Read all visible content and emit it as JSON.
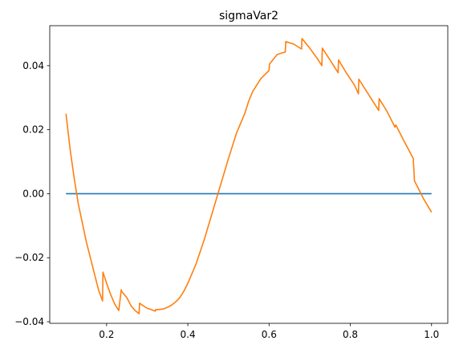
{
  "chart_data": {
    "type": "line",
    "title": "sigmaVar2",
    "xlabel": "",
    "ylabel": "",
    "xlim": [
      0.06,
      1.04
    ],
    "ylim": [
      -0.0405,
      0.0525
    ],
    "grid": false,
    "x_ticks": [
      0.2,
      0.4,
      0.6,
      0.8,
      1.0
    ],
    "x_tick_labels": [
      "0.2",
      "0.4",
      "0.6",
      "0.8",
      "1.0"
    ],
    "y_ticks": [
      -0.04,
      -0.02,
      0.0,
      0.02,
      0.04
    ],
    "y_tick_labels": [
      "−0.04",
      "−0.02",
      "0.00",
      "0.02",
      "0.04"
    ],
    "series": [
      {
        "color": "#1f77b4",
        "x": [
          0.1,
          1.0
        ],
        "y": [
          0.0,
          0.0
        ]
      },
      {
        "color": "#ff7f0e",
        "x": [
          0.1,
          0.11,
          0.12,
          0.13,
          0.14,
          0.15,
          0.16,
          0.17,
          0.18,
          0.19,
          0.191,
          0.2,
          0.21,
          0.22,
          0.23,
          0.236,
          0.237,
          0.25,
          0.26,
          0.27,
          0.28,
          0.281,
          0.29,
          0.3,
          0.31,
          0.32,
          0.321,
          0.33,
          0.34,
          0.35,
          0.36,
          0.37,
          0.38,
          0.39,
          0.4,
          0.42,
          0.44,
          0.46,
          0.48,
          0.5,
          0.52,
          0.54,
          0.55,
          0.56,
          0.58,
          0.6,
          0.601,
          0.62,
          0.64,
          0.641,
          0.66,
          0.68,
          0.681,
          0.7,
          0.72,
          0.73,
          0.731,
          0.75,
          0.77,
          0.771,
          0.79,
          0.81,
          0.82,
          0.821,
          0.84,
          0.86,
          0.87,
          0.871,
          0.89,
          0.91,
          0.912,
          0.93,
          0.955,
          0.958,
          0.98,
          1.0
        ],
        "y": [
          0.025,
          0.014,
          0.005,
          -0.003,
          -0.009,
          -0.015,
          -0.02,
          -0.025,
          -0.03,
          -0.0335,
          -0.0245,
          -0.028,
          -0.0315,
          -0.0345,
          -0.0365,
          -0.03,
          -0.0305,
          -0.0325,
          -0.035,
          -0.0365,
          -0.0375,
          -0.0342,
          -0.035,
          -0.0358,
          -0.0362,
          -0.0367,
          -0.0362,
          -0.0362,
          -0.036,
          -0.0355,
          -0.0348,
          -0.0338,
          -0.0325,
          -0.0305,
          -0.028,
          -0.022,
          -0.0145,
          -0.006,
          0.0025,
          0.011,
          0.019,
          0.025,
          0.029,
          0.032,
          0.036,
          0.0385,
          0.0405,
          0.0435,
          0.0443,
          0.0475,
          0.0468,
          0.0452,
          0.0485,
          0.0455,
          0.042,
          0.04,
          0.0455,
          0.0418,
          0.0378,
          0.0418,
          0.0378,
          0.034,
          0.0312,
          0.0358,
          0.032,
          0.028,
          0.026,
          0.0297,
          0.0258,
          0.0208,
          0.0215,
          0.017,
          0.011,
          0.004,
          -0.0015,
          -0.0058
        ]
      }
    ]
  }
}
